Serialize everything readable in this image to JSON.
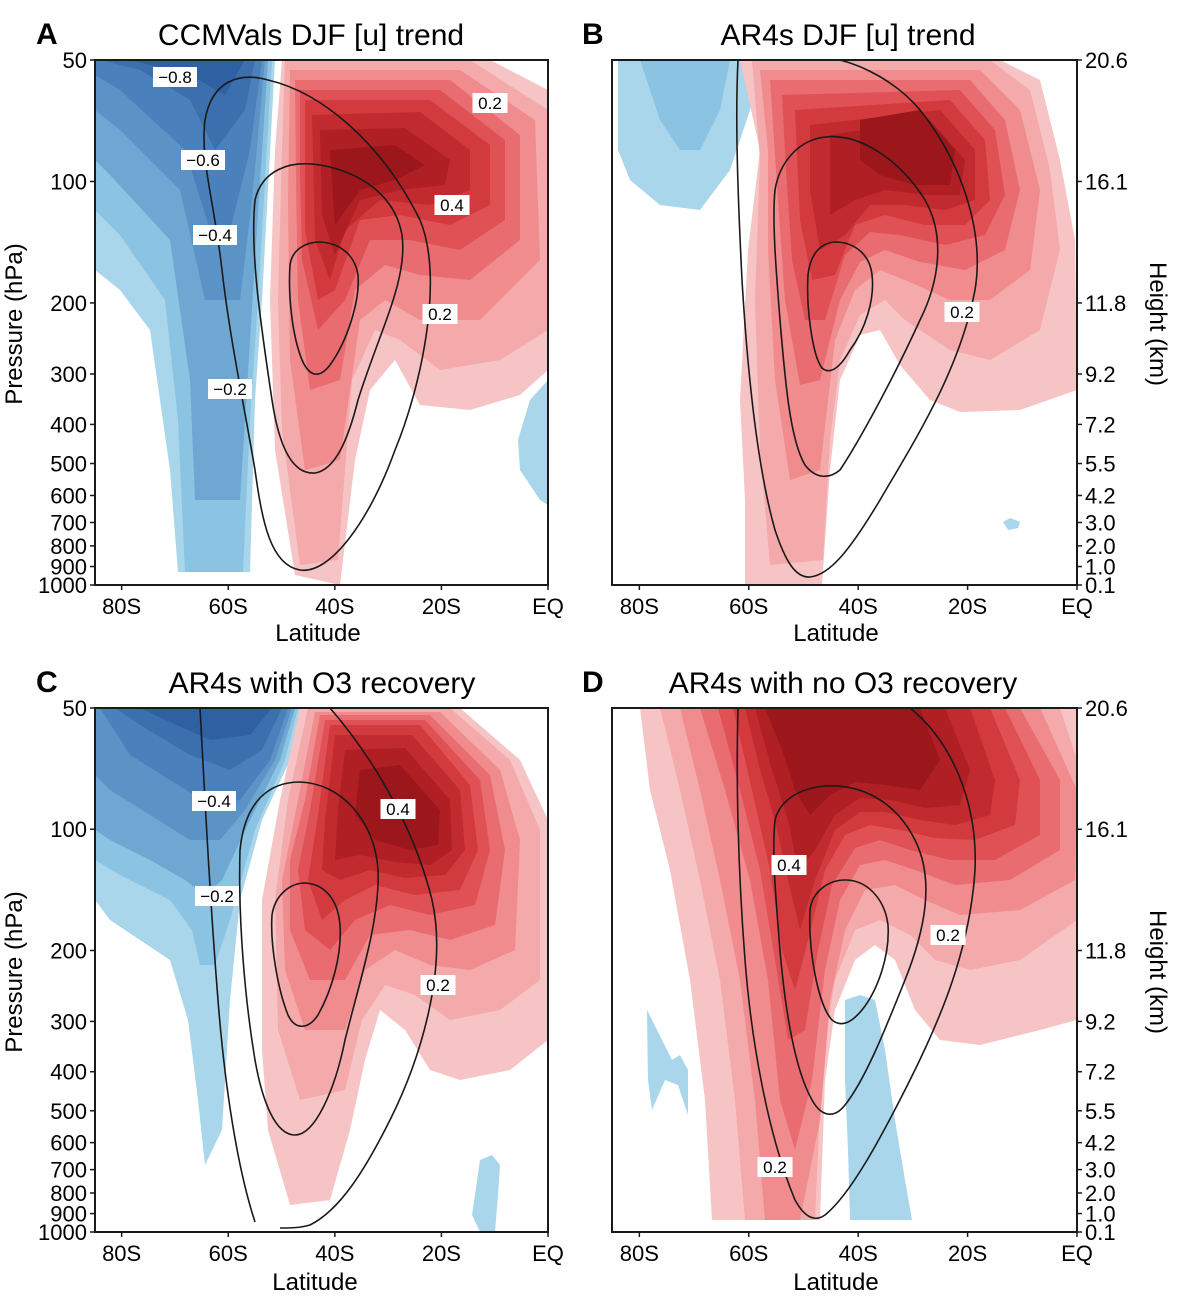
{
  "figure": {
    "panels": [
      {
        "letter": "A",
        "title": "CCMVals DJF [u] trend",
        "xlabel": "Latitude",
        "ylabel": "Pressure (hPa)",
        "right_label": "",
        "contour_labels": [
          "−0.8",
          "−0.6",
          "−0.4",
          "−0.2",
          "0.2",
          "0.4",
          "0.2"
        ]
      },
      {
        "letter": "B",
        "title": "AR4s DJF [u] trend",
        "xlabel": "Latitude",
        "ylabel": "",
        "right_label": "Height (km)",
        "contour_labels": [
          "0.2"
        ]
      },
      {
        "letter": "C",
        "title": "AR4s with O3 recovery",
        "xlabel": "Latitude",
        "ylabel": "Pressure (hPa)",
        "right_label": "",
        "contour_labels": [
          "−0.4",
          "−0.2",
          "0.4",
          "0.2"
        ]
      },
      {
        "letter": "D",
        "title": "AR4s with no O3 recovery",
        "xlabel": "Latitude",
        "ylabel": "",
        "right_label": "Height (km)",
        "contour_labels": [
          "0.4",
          "0.2",
          "0.2"
        ]
      }
    ]
  },
  "chart_data": {
    "type": "heatmap",
    "x_ticks": [
      "80S",
      "60S",
      "40S",
      "20S",
      "EQ"
    ],
    "x_tick_values": [
      -80,
      -60,
      -40,
      -20,
      0
    ],
    "xlim": [
      -85,
      0
    ],
    "y_ticks": [
      "50",
      "100",
      "200",
      "300",
      "400",
      "500",
      "600",
      "700",
      "800",
      "900",
      "1000"
    ],
    "y_tick_values": [
      50,
      100,
      200,
      300,
      400,
      500,
      600,
      700,
      800,
      900,
      1000
    ],
    "ylim": [
      1000,
      50
    ],
    "y_scale": "log",
    "height_ticks": [
      "20.6",
      "16.1",
      "11.8",
      "9.2",
      "7.2",
      "5.5",
      "4.2",
      "3.0",
      "2.0",
      "1.0",
      "0.1"
    ],
    "colors": {
      "positive": [
        "#f6c4c4",
        "#f4a9ab",
        "#f08b8e",
        "#e96c70",
        "#e05155",
        "#d23a3e",
        "#c12a2f",
        "#b01f24",
        "#9c171b"
      ],
      "negative": [
        "#a9d6ea",
        "#8bc3e2",
        "#6fa7d3",
        "#5b93c7",
        "#4a80bb",
        "#3b6fae",
        "#2f60a2"
      ],
      "contour": "#1a1a1a"
    },
    "panels": [
      {
        "id": "A",
        "positive_core": {
          "lat": -45,
          "p": 200
        },
        "positive_upper": {
          "lat": -28,
          "p": 90
        },
        "negative_core": {
          "lat": -72,
          "p": 60
        },
        "climatology_contours": 3
      },
      {
        "id": "B",
        "positive_core": {
          "lat": -44,
          "p": 190
        },
        "positive_upper": {
          "lat": -28,
          "p": 100
        },
        "negative_core": {
          "lat": -78,
          "p": 60
        },
        "climatology_contours": 3
      },
      {
        "id": "C",
        "positive_core": {
          "lat": -45,
          "p": 190
        },
        "positive_upper": {
          "lat": -28,
          "p": 100
        },
        "negative_core": {
          "lat": -72,
          "p": 60
        },
        "climatology_contours": 3
      },
      {
        "id": "D",
        "positive_core": {
          "lat": -52,
          "p": 100
        },
        "positive_upper": {
          "lat": -40,
          "p": 70
        },
        "negative_core": {
          "lat": -40,
          "p": 500
        },
        "climatology_contours": 3
      }
    ]
  }
}
